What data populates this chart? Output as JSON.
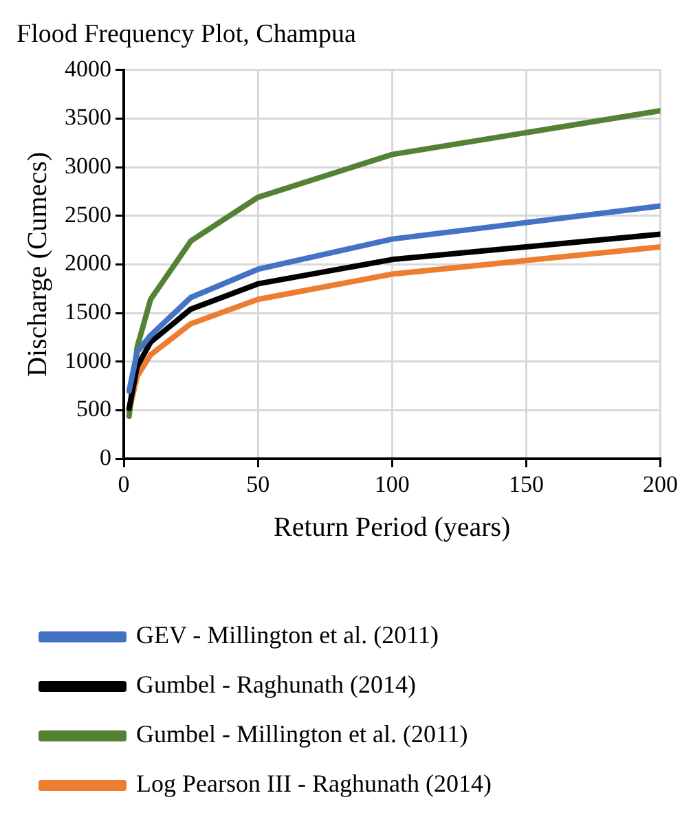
{
  "chart_data": {
    "type": "line",
    "title": "Flood Frequency Plot, Champua",
    "xlabel": "Return Period (years)",
    "ylabel": "Discharge (Cumecs)",
    "x": [
      2,
      5,
      10,
      25,
      50,
      100,
      200
    ],
    "series": [
      {
        "name": "GEV - Millington et al. (2011)",
        "color": "#4472c4",
        "values": [
          700,
          1100,
          1270,
          1660,
          1950,
          2260,
          2600
        ]
      },
      {
        "name": "Gumbel - Raghunath (2014)",
        "color": "#000000",
        "values": [
          520,
          950,
          1200,
          1540,
          1800,
          2050,
          2310
        ]
      },
      {
        "name": "Gumbel - Millington et al. (2011)",
        "color": "#548235",
        "values": [
          440,
          1150,
          1640,
          2240,
          2690,
          3130,
          3580
        ]
      },
      {
        "name": "Log Pearson III - Raghunath (2014)",
        "color": "#ed7d31",
        "values": [
          490,
          850,
          1070,
          1390,
          1640,
          1900,
          2180
        ]
      }
    ],
    "xlim": [
      0,
      200
    ],
    "xticks": [
      0,
      50,
      100,
      150,
      200
    ],
    "ylim": [
      0,
      4000
    ],
    "yticks": [
      0,
      500,
      1000,
      1500,
      2000,
      2500,
      3000,
      3500,
      4000
    ],
    "grid": true,
    "legend": "bottom",
    "marker": "none",
    "line_style": "solid"
  }
}
